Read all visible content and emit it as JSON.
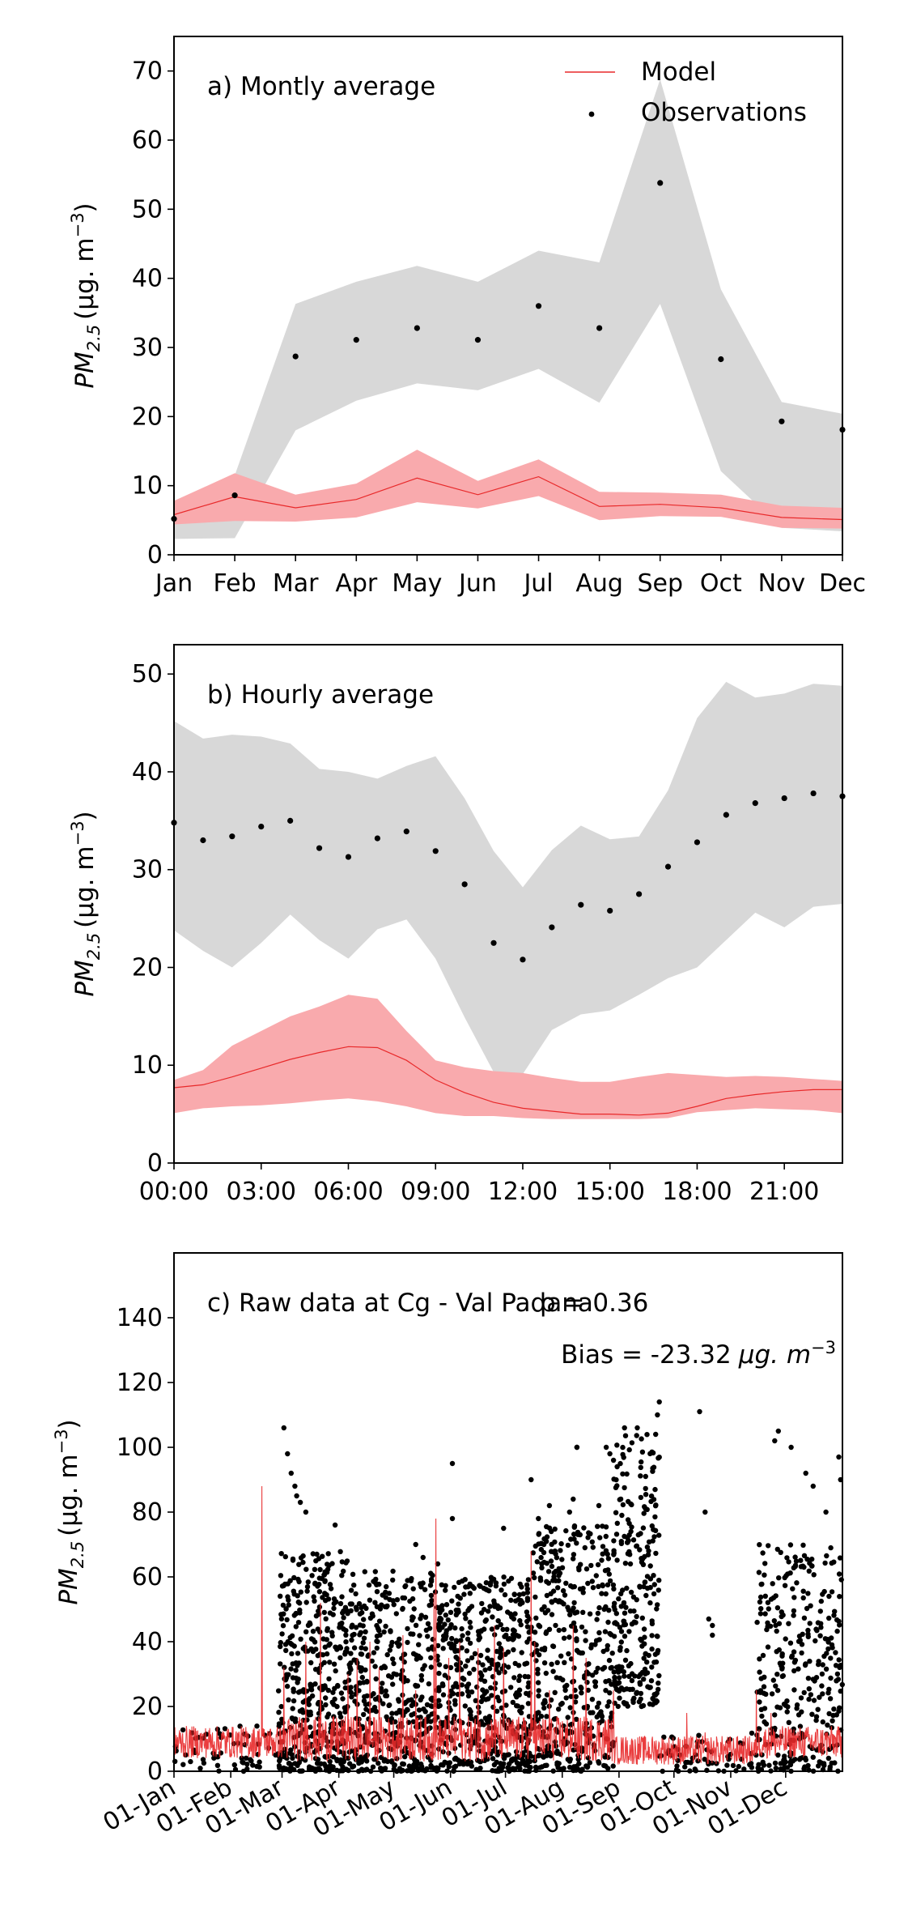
{
  "charts": [
    {
      "id": "a",
      "type": "line",
      "annotation": "a) Montly average",
      "ylabel_main": "PM",
      "ylabel_sub": "2.5",
      "ylabel_unit": "(μg. m",
      "ylabel_unit_sup": "−3",
      "ylabel_close": ")",
      "xlim": [
        0,
        11
      ],
      "ylim": [
        0,
        75
      ],
      "yticks": [
        0,
        10,
        20,
        30,
        40,
        50,
        60,
        70
      ],
      "xtick_labels": [
        "Jan",
        "Feb",
        "Mar",
        "Apr",
        "May",
        "Jun",
        "Jul",
        "Aug",
        "Sep",
        "Oct",
        "Nov",
        "Dec"
      ],
      "legend": {
        "model": "Model",
        "observations": "Observations",
        "placement": "top-right"
      },
      "colors": {
        "model": "#e8292a",
        "model_band": "#f9aaad",
        "obs_band": "#d8d8d8",
        "obs": "#000000"
      },
      "model": [
        5.8,
        8.4,
        6.8,
        8.0,
        11.1,
        8.7,
        11.3,
        7.0,
        7.3,
        6.8,
        5.4,
        5.1
      ],
      "model_upper": [
        7.8,
        11.8,
        8.7,
        10.3,
        15.2,
        10.7,
        13.8,
        9.1,
        9.0,
        8.7,
        7.1,
        6.8
      ],
      "model_lower": [
        4.4,
        4.9,
        4.8,
        5.4,
        7.6,
        6.7,
        8.5,
        5.0,
        5.6,
        5.5,
        3.9,
        3.8
      ],
      "obs": [
        5.2,
        8.6,
        28.7,
        31.1,
        32.8,
        31.1,
        36.0,
        32.8,
        53.8,
        28.3,
        19.3,
        18.1
      ],
      "obs_upper": [
        6.0,
        11.5,
        36.3,
        39.5,
        41.8,
        39.5,
        44.0,
        42.3,
        68.8,
        38.4,
        22.1,
        20.4
      ],
      "obs_lower": [
        2.3,
        2.4,
        18.0,
        22.3,
        24.8,
        23.8,
        26.9,
        22.0,
        36.3,
        12.1,
        3.9,
        3.4
      ]
    },
    {
      "id": "b",
      "type": "line",
      "annotation": "b) Hourly average",
      "ylabel_main": "PM",
      "ylabel_sub": "2.5",
      "ylabel_unit": "(μg. m",
      "ylabel_unit_sup": "−3",
      "ylabel_close": ")",
      "xlim": [
        0,
        23
      ],
      "ylim": [
        0,
        53
      ],
      "yticks": [
        0,
        10,
        20,
        30,
        40,
        50
      ],
      "xticks": [
        0,
        3,
        6,
        9,
        12,
        15,
        18,
        21
      ],
      "xtick_labels": [
        "00:00",
        "03:00",
        "06:00",
        "09:00",
        "12:00",
        "15:00",
        "18:00",
        "21:00"
      ],
      "colors": {
        "model": "#e8292a",
        "model_band": "#f9aaad",
        "obs_band": "#d8d8d8",
        "obs": "#000000"
      },
      "model": [
        7.7,
        8.0,
        8.8,
        9.7,
        10.6,
        11.3,
        11.9,
        11.8,
        10.5,
        8.5,
        7.2,
        6.2,
        5.6,
        5.3,
        5.0,
        5.0,
        4.9,
        5.1,
        5.8,
        6.6,
        7.0,
        7.3,
        7.5,
        7.5
      ],
      "model_upper": [
        8.5,
        9.5,
        12.0,
        13.5,
        15.0,
        16.0,
        17.2,
        16.8,
        13.5,
        10.5,
        9.8,
        9.4,
        9.2,
        8.7,
        8.3,
        8.3,
        8.8,
        9.2,
        9.0,
        8.8,
        8.9,
        8.8,
        8.6,
        8.4
      ],
      "model_lower": [
        5.1,
        5.6,
        5.8,
        5.9,
        6.1,
        6.4,
        6.6,
        6.3,
        5.8,
        5.1,
        4.8,
        4.8,
        4.6,
        4.5,
        4.5,
        4.5,
        4.5,
        4.6,
        5.2,
        5.4,
        5.6,
        5.5,
        5.4,
        5.1
      ],
      "obs": [
        34.8,
        33.0,
        33.4,
        34.4,
        35.0,
        32.2,
        31.3,
        33.2,
        33.9,
        31.9,
        28.5,
        22.5,
        20.8,
        24.1,
        26.4,
        25.8,
        27.5,
        30.3,
        32.8,
        35.6,
        36.8,
        37.3,
        37.8,
        37.5
      ],
      "obs_upper": [
        45.2,
        43.4,
        43.8,
        43.6,
        42.9,
        40.3,
        40.0,
        39.3,
        40.6,
        41.6,
        37.3,
        31.9,
        28.2,
        32.0,
        34.5,
        33.1,
        33.4,
        38.1,
        45.5,
        49.2,
        47.6,
        48.0,
        49.0,
        48.8
      ],
      "obs_lower": [
        23.8,
        21.7,
        20.0,
        22.5,
        25.4,
        22.8,
        20.9,
        23.9,
        24.9,
        20.9,
        14.9,
        9.3,
        9.1,
        13.6,
        15.2,
        15.6,
        17.2,
        18.9,
        20.0,
        22.8,
        25.6,
        24.1,
        26.2,
        26.5
      ]
    },
    {
      "id": "c",
      "type": "scatter",
      "annotation": "c) Raw data at Cg - Val Padana",
      "rho_label": "ρ = 0.36",
      "bias_prefix": "Bias = -23.32",
      "bias_unit": "μg. m",
      "bias_unit_sup": "−3",
      "ylabel_main": "PM",
      "ylabel_sub": "2.5",
      "ylabel_unit": "(μg. m",
      "ylabel_unit_sup": "−3",
      "ylabel_close": ")",
      "xlim": [
        0,
        365
      ],
      "ylim": [
        0,
        160
      ],
      "yticks": [
        0,
        20,
        40,
        60,
        80,
        100,
        120,
        140
      ],
      "xticks": [
        0,
        31,
        59,
        90,
        120,
        151,
        181,
        212,
        243,
        273,
        304,
        334
      ],
      "xtick_labels": [
        "01-Jan",
        "01-Feb",
        "01-Mar",
        "01-Apr",
        "01-May",
        "01-Jun",
        "01-Jul",
        "01-Aug",
        "01-Sep",
        "01-Oct",
        "01-Nov",
        "01-Dec"
      ],
      "colors": {
        "model": "#e8292a",
        "obs": "#000000"
      },
      "model_spikes": [
        [
          48,
          88
        ],
        [
          52,
          12
        ],
        [
          60,
          32
        ],
        [
          72,
          40
        ],
        [
          80,
          52
        ],
        [
          95,
          30
        ],
        [
          100,
          35
        ],
        [
          107,
          40
        ],
        [
          112,
          32
        ],
        [
          125,
          42
        ],
        [
          132,
          25
        ],
        [
          142,
          55
        ],
        [
          143,
          78
        ],
        [
          150,
          35
        ],
        [
          156,
          40
        ],
        [
          166,
          38
        ],
        [
          175,
          45
        ],
        [
          180,
          38
        ],
        [
          195,
          68
        ],
        [
          197,
          40
        ],
        [
          205,
          25
        ],
        [
          218,
          45
        ],
        [
          225,
          35
        ],
        [
          240,
          25
        ],
        [
          280,
          18
        ],
        [
          290,
          12
        ],
        [
          318,
          25
        ],
        [
          326,
          18
        ]
      ],
      "obs_outliers": [
        [
          60,
          106
        ],
        [
          62,
          98
        ],
        [
          64,
          92
        ],
        [
          66,
          88
        ],
        [
          67,
          85
        ],
        [
          69,
          83
        ],
        [
          72,
          80
        ],
        [
          78,
          67
        ],
        [
          88,
          76
        ],
        [
          132,
          70
        ],
        [
          136,
          66
        ],
        [
          144,
          64
        ],
        [
          152,
          95
        ],
        [
          152,
          78
        ],
        [
          180,
          75
        ],
        [
          195,
          90
        ],
        [
          199,
          78
        ],
        [
          202,
          70
        ],
        [
          205,
          82
        ],
        [
          206,
          74
        ],
        [
          216,
          80
        ],
        [
          218,
          84
        ],
        [
          220,
          100
        ],
        [
          220,
          100
        ],
        [
          232,
          82
        ],
        [
          236,
          100
        ],
        [
          238,
          98
        ],
        [
          240,
          96
        ],
        [
          242,
          94
        ],
        [
          246,
          106
        ],
        [
          253,
          106
        ],
        [
          263,
          104
        ],
        [
          264,
          110
        ],
        [
          265,
          114
        ],
        [
          287,
          111
        ],
        [
          290,
          80
        ],
        [
          292,
          47
        ],
        [
          294,
          45
        ],
        [
          294,
          42
        ],
        [
          328,
          102
        ],
        [
          330,
          105
        ],
        [
          337,
          100
        ],
        [
          345,
          92
        ],
        [
          349,
          88
        ],
        [
          356,
          80
        ],
        [
          363,
          97
        ],
        [
          364,
          90
        ]
      ],
      "obs_density": [
        {
          "start": 0,
          "end": 57,
          "low": 0,
          "high": 14,
          "count": 60
        },
        {
          "start": 57,
          "end": 95,
          "low": 0,
          "high": 68,
          "count": 420
        },
        {
          "start": 95,
          "end": 150,
          "low": 0,
          "high": 62,
          "count": 520
        },
        {
          "start": 150,
          "end": 195,
          "low": 0,
          "high": 60,
          "count": 440
        },
        {
          "start": 195,
          "end": 240,
          "low": 0,
          "high": 76,
          "count": 420
        },
        {
          "start": 240,
          "end": 265,
          "low": 20,
          "high": 104,
          "count": 260
        },
        {
          "start": 265,
          "end": 318,
          "low": 0,
          "high": 12,
          "count": 60
        },
        {
          "start": 318,
          "end": 365,
          "low": 0,
          "high": 70,
          "count": 320
        }
      ]
    }
  ]
}
